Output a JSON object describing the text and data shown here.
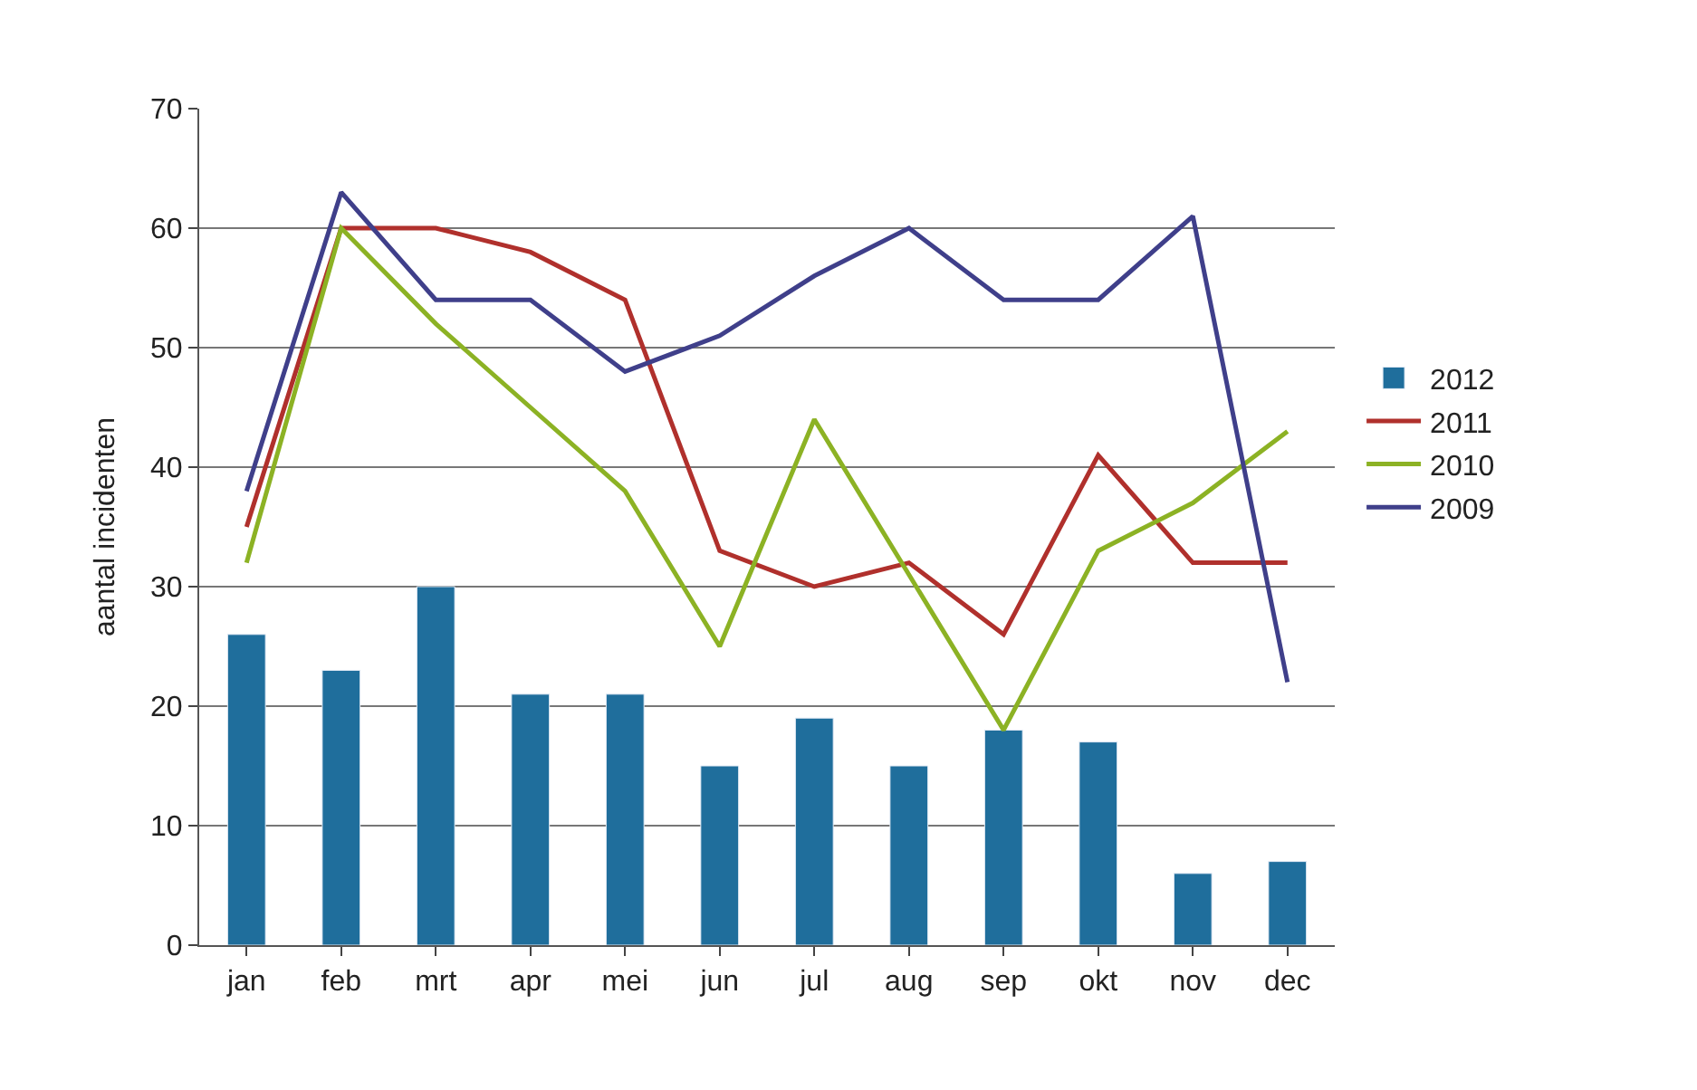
{
  "chart_data": {
    "type": "bar",
    "ylabel": "aantal incidenten",
    "categories": [
      "jan",
      "feb",
      "mrt",
      "apr",
      "mei",
      "jun",
      "jul",
      "aug",
      "sep",
      "okt",
      "nov",
      "dec"
    ],
    "series": [
      {
        "name": "2012",
        "color": "#1f6e9c",
        "values": [
          26,
          23,
          30,
          21,
          21,
          15,
          19,
          15,
          18,
          17,
          6,
          7
        ]
      },
      {
        "name": "2011",
        "type": "line",
        "color": "#b0302c",
        "values": [
          35,
          60,
          60,
          58,
          54,
          33,
          30,
          32,
          26,
          41,
          32,
          32
        ]
      },
      {
        "name": "2010",
        "type": "line",
        "color": "#8cb224",
        "values": [
          32,
          60,
          52,
          45,
          38,
          25,
          44,
          31,
          18,
          33,
          37,
          43
        ]
      },
      {
        "name": "2009",
        "type": "line",
        "color": "#3f3f8a",
        "values": [
          38,
          63,
          54,
          54,
          48,
          51,
          56,
          60,
          54,
          54,
          61,
          22
        ]
      }
    ],
    "ylim": [
      0,
      70
    ],
    "yticks": [
      0,
      10,
      20,
      30,
      40,
      50,
      60,
      70
    ],
    "grid": "y",
    "legend": "right",
    "marker": "none",
    "line_style": "solid"
  }
}
